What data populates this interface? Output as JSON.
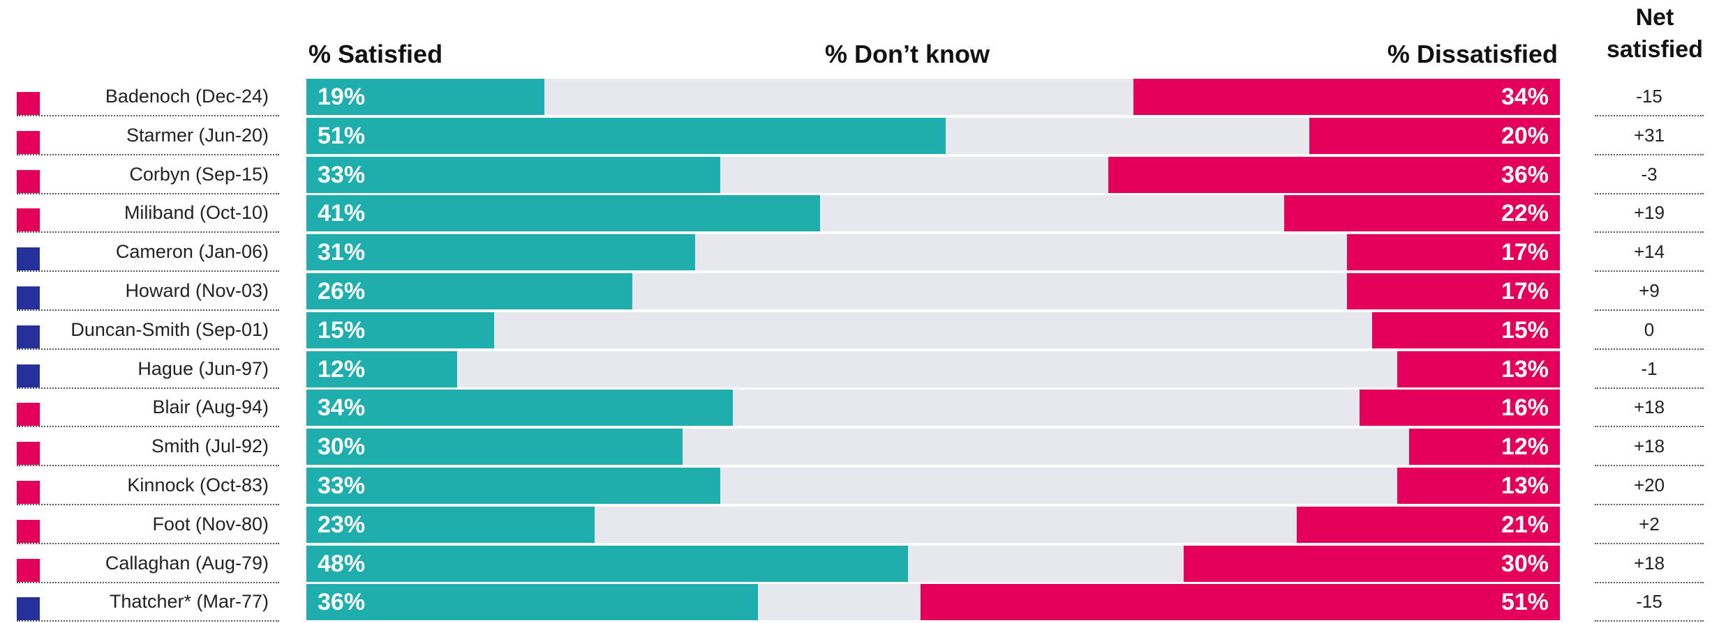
{
  "headers": {
    "satisfied": "% Satisfied",
    "dont_know": "% Don’t know",
    "dissatisfied": "% Dissatisfied",
    "net": "Net satisfied"
  },
  "colors": {
    "satisfied": "#1faeae",
    "dont_know": "#e6e8ee",
    "dissatisfied": "#e4005a",
    "labour": "#e4005a",
    "conservative": "#26309a"
  },
  "chart_data": {
    "type": "bar",
    "stacked": true,
    "orientation": "horizontal",
    "categories": [
      "Badenoch (Dec-24)",
      "Starmer (Jun-20)",
      "Corbyn (Sep-15)",
      "Miliband  (Oct-10)",
      "Cameron (Jan-06)",
      "Howard (Nov-03)",
      "Duncan-Smith (Sep-01)",
      "Hague (Jun-97)",
      "Blair (Aug-94)",
      "Smith (Jul-92)",
      "Kinnock (Oct-83)",
      "Foot (Nov-80)",
      "Callaghan (Aug-79)",
      "Thatcher* (Mar-77)"
    ],
    "party_color": [
      "labour",
      "labour",
      "labour",
      "labour",
      "conservative",
      "conservative",
      "conservative",
      "conservative",
      "labour",
      "labour",
      "labour",
      "labour",
      "labour",
      "conservative"
    ],
    "series": [
      {
        "name": "% Satisfied",
        "values": [
          19,
          51,
          33,
          41,
          31,
          26,
          15,
          12,
          34,
          30,
          33,
          23,
          48,
          36
        ]
      },
      {
        "name": "% Don’t know",
        "values": [
          47,
          29,
          31,
          37,
          52,
          57,
          70,
          75,
          50,
          58,
          54,
          56,
          22,
          13
        ]
      },
      {
        "name": "% Dissatisfied",
        "values": [
          34,
          20,
          36,
          22,
          17,
          17,
          15,
          13,
          16,
          12,
          13,
          21,
          30,
          51
        ]
      }
    ],
    "net_satisfied": [
      "-15",
      "+31",
      "-3",
      "+19",
      "+14",
      "+9",
      "0",
      "-1",
      "+18",
      "+18",
      "+20",
      "+2",
      "+18",
      "-15"
    ],
    "xlim": [
      0,
      100
    ]
  }
}
